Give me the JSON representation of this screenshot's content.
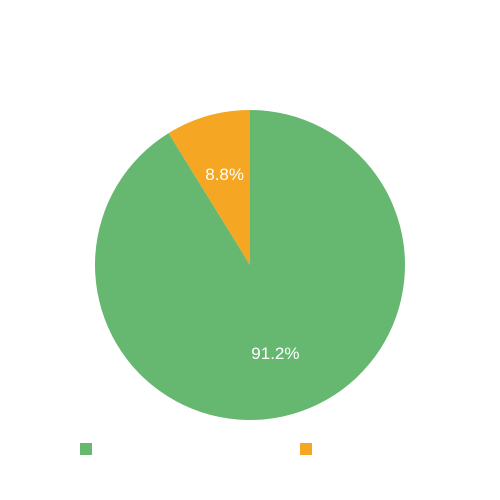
{
  "chart_data": {
    "type": "pie",
    "title": "",
    "slices": [
      {
        "name": "",
        "value": 91.2,
        "label": "91.2%",
        "color": "#66b870"
      },
      {
        "name": "",
        "value": 8.8,
        "label": "8.8%",
        "color": "#f5a623"
      }
    ],
    "legend": {
      "position": "bottom"
    },
    "label_color": "#ffffff"
  }
}
